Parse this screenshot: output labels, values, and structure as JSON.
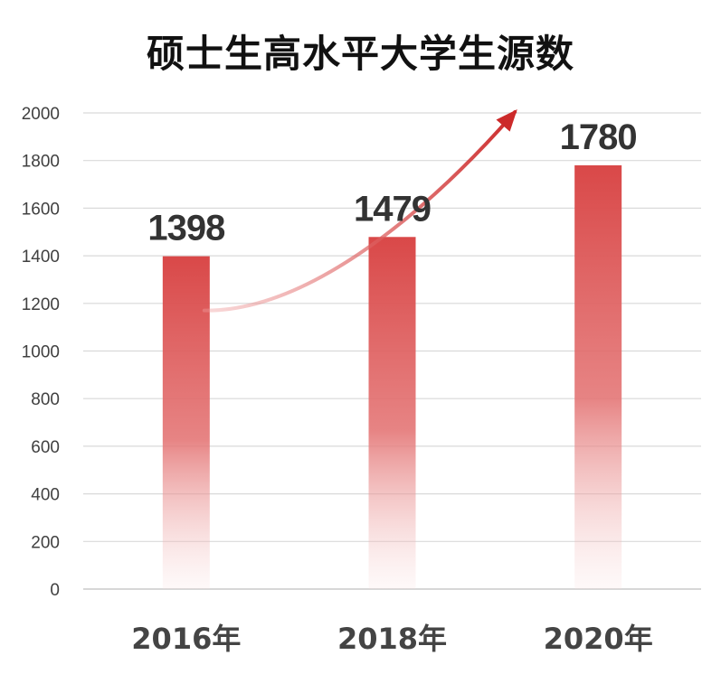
{
  "chart_data": {
    "type": "bar",
    "title": "硕士生高水平大学生源数",
    "categories": [
      "2016年",
      "2018年",
      "2020年"
    ],
    "values": [
      1398,
      1479,
      1780
    ],
    "data_labels": [
      "1398",
      "1479",
      "1780"
    ],
    "ylim": [
      0,
      2000
    ],
    "yticks": [
      "0",
      "200",
      "400",
      "600",
      "800",
      "1000",
      "1200",
      "1400",
      "1600",
      "1800",
      "2000"
    ],
    "xlabel": "",
    "ylabel": "",
    "grid": true,
    "legend": "none",
    "bar_color": "#d94848",
    "trend_arrow_color": "#cc2a2a"
  }
}
